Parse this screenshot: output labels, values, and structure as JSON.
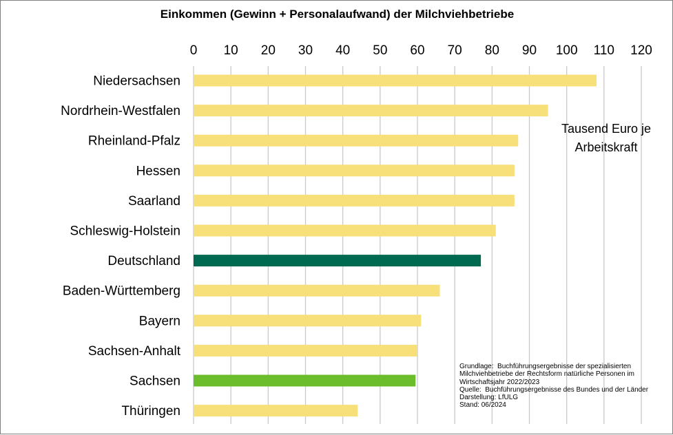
{
  "chart_data": {
    "type": "bar",
    "orientation": "horizontal",
    "title": "Einkommen (Gewinn + Personalaufwand) der Milchviehbetriebe",
    "unit_label": "Tausend  Euro je Arbeitskraft",
    "xlim": [
      0,
      120
    ],
    "x_ticks": [
      "0",
      "10",
      "20",
      "30",
      "40",
      "50",
      "60",
      "70",
      "80",
      "90",
      "100",
      "110",
      "120"
    ],
    "grid": true,
    "categories": [
      "Niedersachsen",
      "Nordrhein-Westfalen",
      "Rheinland-Pfalz",
      "Hessen",
      "Saarland",
      "Schleswig-Holstein",
      "Deutschland",
      "Baden-Württemberg",
      "Bayern",
      "Sachsen-Anhalt",
      "Sachsen",
      "Thüringen"
    ],
    "values": [
      108,
      95,
      87,
      86,
      86,
      81,
      77,
      66,
      61,
      60,
      59.5,
      44
    ],
    "bar_colors": [
      "#f7df7a",
      "#f7df7a",
      "#f7df7a",
      "#f7df7a",
      "#f7df7a",
      "#f7df7a",
      "#006a50",
      "#f7df7a",
      "#f7df7a",
      "#f7df7a",
      "#6cbd2b",
      "#f7df7a"
    ],
    "colors": {
      "default": "#f7df7a",
      "deutschland": "#006a50",
      "sachsen": "#6cbd2b",
      "grid": "#c9c9c9"
    }
  },
  "source_note": [
    "Grundlage:  Buchführungsergebnisse der spezialisierten",
    "Milchviehbetriebe der Rechtsform natürliche Personen im",
    "Wirtschaftsjahr 2022/2023",
    "Quelle:  Buchführungsergebnisse des Bundes und der Länder",
    "Darstellung: LfULG",
    "Stand: 06/2024"
  ]
}
